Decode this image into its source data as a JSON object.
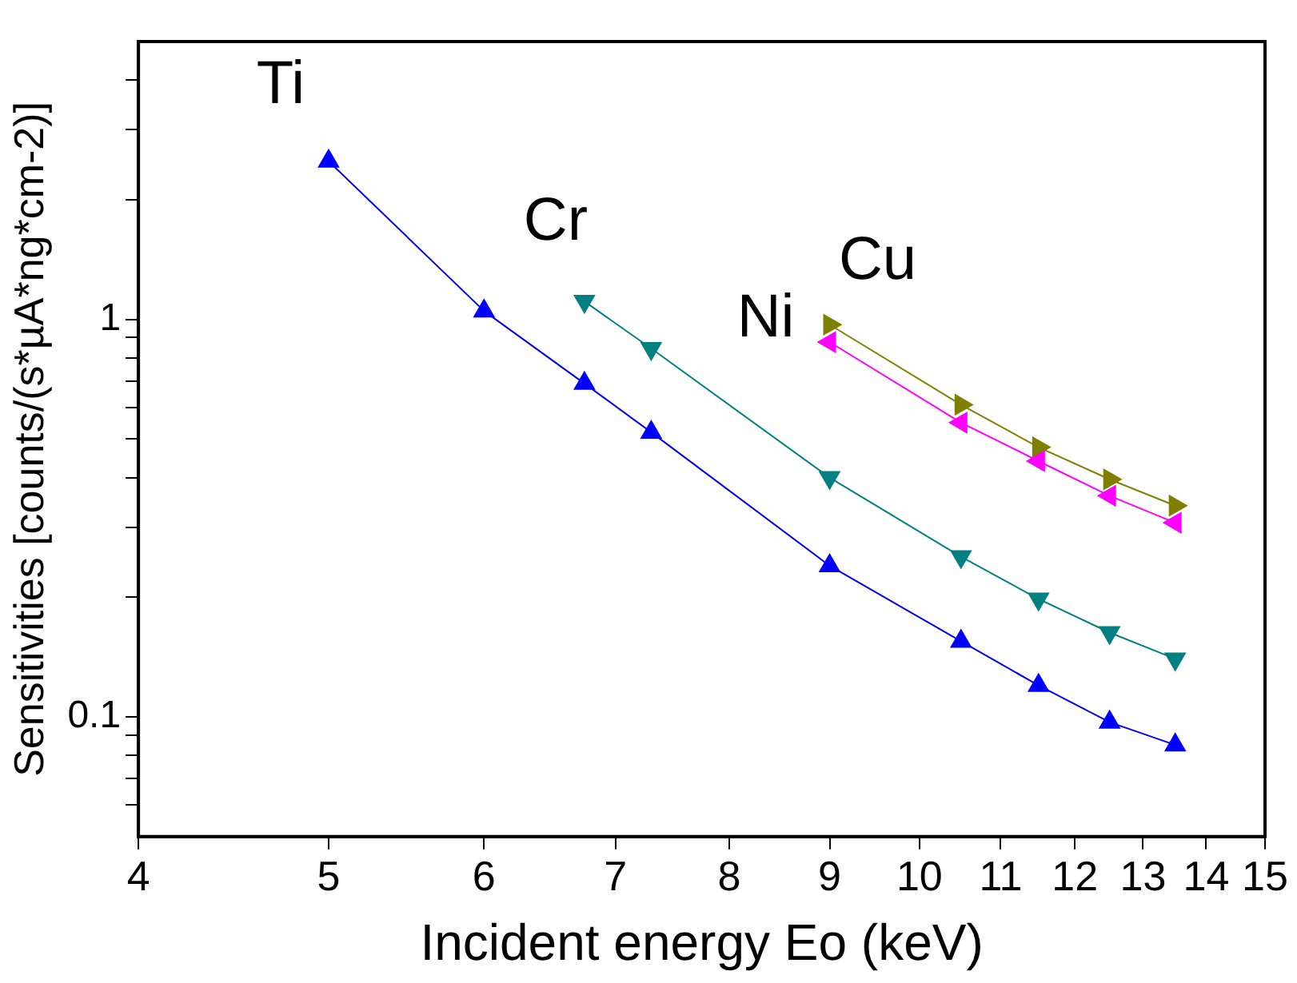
{
  "chart_data": {
    "type": "line",
    "xlabel": "Incident energy Eo (keV)",
    "ylabel": "Sensitivities [counts/(s*µA*ng*cm-2)]",
    "log": "xy",
    "grid": false,
    "legend": false,
    "marker": "triangle",
    "line_style": "solid",
    "xlim": [
      4,
      15
    ],
    "xticks": [
      4,
      5,
      6,
      7,
      8,
      9,
      10,
      11,
      12,
      13,
      14,
      15
    ],
    "ylim": [
      0.05,
      5
    ],
    "yticks": [
      {
        "value": 0.06,
        "label": null
      },
      {
        "value": 0.07,
        "label": null
      },
      {
        "value": 0.08,
        "label": null
      },
      {
        "value": 0.09,
        "label": null
      },
      0.1,
      {
        "value": 0.2,
        "label": null
      },
      {
        "value": 0.3,
        "label": null
      },
      {
        "value": 0.4,
        "label": null
      },
      {
        "value": 0.5,
        "label": null
      },
      {
        "value": 0.6,
        "label": null
      },
      {
        "value": 0.7,
        "label": null
      },
      {
        "value": 0.8,
        "label": null
      },
      {
        "value": 0.9,
        "label": null
      },
      1,
      {
        "value": 2,
        "label": null
      },
      {
        "value": 3,
        "label": null
      },
      {
        "value": 4,
        "label": null
      }
    ],
    "series": [
      {
        "name": "Ti",
        "color": "#0000ff",
        "x": [
          5,
          6,
          6.75,
          7.3,
          9,
          10.5,
          11.5,
          12.5,
          13.5
        ],
        "values": [
          2.5,
          1.05,
          0.69,
          0.52,
          0.24,
          0.155,
          0.12,
          0.097,
          0.085
        ]
      },
      {
        "name": "Cr",
        "color": "#008080",
        "x": [
          6.75,
          7.3,
          9,
          10.5,
          11.5,
          12.5,
          13.5
        ],
        "values": [
          1.11,
          0.845,
          0.4,
          0.253,
          0.198,
          0.163,
          0.14
        ]
      },
      {
        "name": "Ni",
        "color": "#ff00ff",
        "x": [
          9,
          10.5,
          11.5,
          12.5,
          13.5
        ],
        "values": [
          0.877,
          0.55,
          0.44,
          0.36,
          0.308
        ]
      },
      {
        "name": "Cu",
        "color": "#808000",
        "x": [
          9,
          10.5,
          11.5,
          12.5,
          13.5
        ],
        "values": [
          0.97,
          0.61,
          0.477,
          0.396,
          0.34
        ]
      }
    ]
  }
}
